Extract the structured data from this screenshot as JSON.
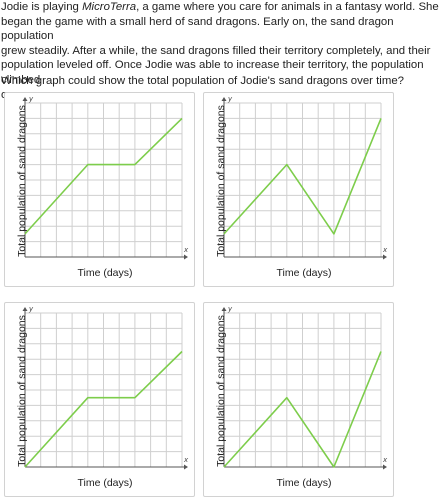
{
  "question": {
    "line1_pre": "Jodie is playing ",
    "line1_title": "MicroTerra",
    "line1_post": ", a game where you care for animals in a fantasy world. She",
    "line2": "began the game with a small herd of sand dragons. Early on, the sand dragon population",
    "line3": "grew steadily. After a while, the sand dragons filled their territory completely, and their",
    "line4": "population leveled off. Once Jodie was able to increase their territory, the population climbed",
    "line5": "once more."
  },
  "prompt": "Which graph could show the total population of Jodie's sand dragons over time?",
  "graph_common": {
    "x_label": "Time (days)",
    "y_label": "Total population of sand dragons",
    "x_axis_letter": "x",
    "y_axis_letter": "y",
    "line_color": "#7dcd4b",
    "grid_color": "#cfcfcf",
    "axis_color": "#555555"
  },
  "chart_data": [
    {
      "type": "line",
      "option": "top-left",
      "x": [
        0,
        4,
        7,
        10
      ],
      "y": [
        1.5,
        6,
        6,
        9
      ],
      "xlim": [
        0,
        10
      ],
      "ylim": [
        0,
        10
      ]
    },
    {
      "type": "line",
      "option": "top-right",
      "x": [
        0,
        4,
        7,
        10
      ],
      "y": [
        1.5,
        6,
        1.5,
        9
      ],
      "xlim": [
        0,
        10
      ],
      "ylim": [
        0,
        10
      ]
    },
    {
      "type": "line",
      "option": "bottom-left",
      "x": [
        0,
        4,
        7,
        10
      ],
      "y": [
        0,
        4.5,
        4.5,
        7.5
      ],
      "xlim": [
        0,
        10
      ],
      "ylim": [
        0,
        10
      ]
    },
    {
      "type": "line",
      "option": "bottom-right",
      "x": [
        0,
        4,
        7,
        10
      ],
      "y": [
        0,
        4.5,
        0,
        7.5
      ],
      "xlim": [
        0,
        10
      ],
      "ylim": [
        0,
        10
      ]
    }
  ]
}
